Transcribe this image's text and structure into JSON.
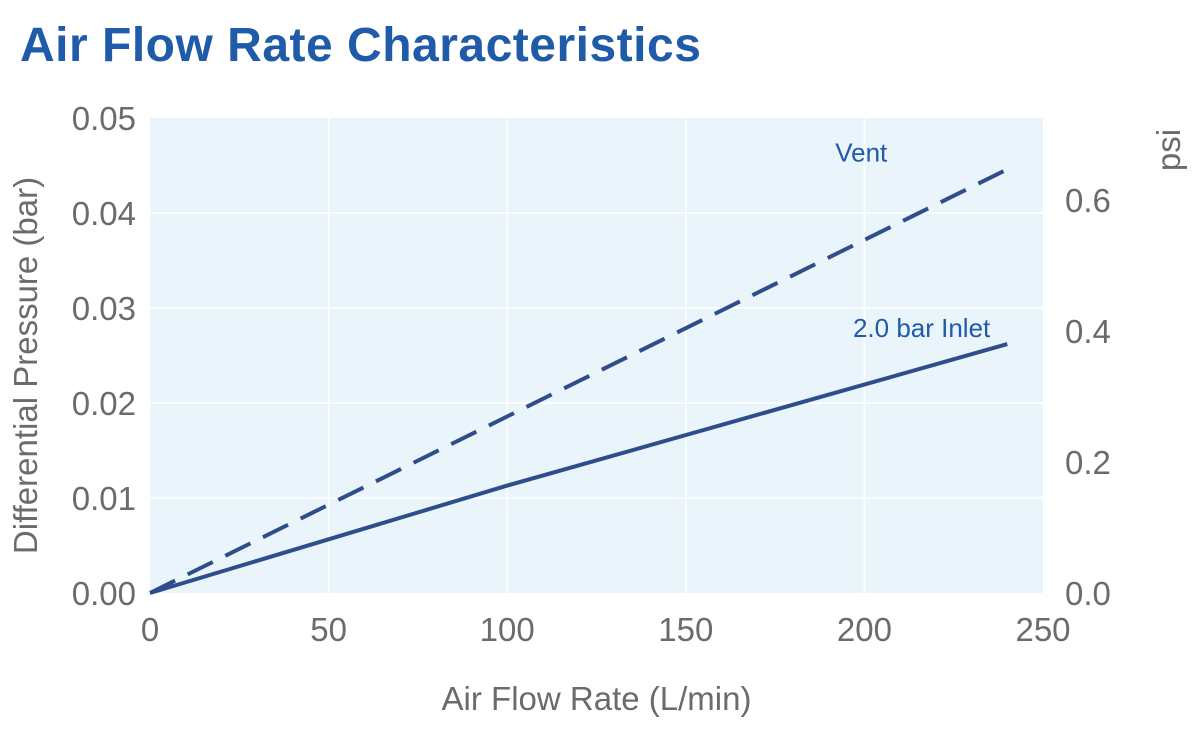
{
  "chart_data": {
    "type": "line",
    "title": "Air Flow Rate Characteristics",
    "xlabel": "Air Flow Rate (L/min)",
    "ylabel": "Differential Pressure (bar)",
    "y2label": "psi",
    "xlim": [
      0,
      250
    ],
    "ylim": [
      0,
      0.05
    ],
    "y2lim": [
      0,
      0.725
    ],
    "xticks": [
      "0",
      "50",
      "100",
      "150",
      "200",
      "250"
    ],
    "yticks": [
      "0.00",
      "0.01",
      "0.02",
      "0.03",
      "0.04",
      "0.05"
    ],
    "y2ticks": [
      "0.0",
      "0.2",
      "0.4",
      "0.6"
    ],
    "grid": true,
    "series": [
      {
        "name": "Vent",
        "style": "dashed",
        "color": "#2e4d8a",
        "x": [
          0,
          240
        ],
        "y": [
          0,
          0.0446
        ]
      },
      {
        "name": "2.0 bar Inlet",
        "style": "solid",
        "color": "#2e4d8a",
        "x": [
          0,
          100,
          240
        ],
        "y": [
          0,
          0.0113,
          0.0262
        ]
      }
    ],
    "colors": {
      "plot_background": "#eaf4fb",
      "title": "#1f5ba8",
      "series_label": "#1f5ba8",
      "line": "#2e4d8a"
    }
  }
}
